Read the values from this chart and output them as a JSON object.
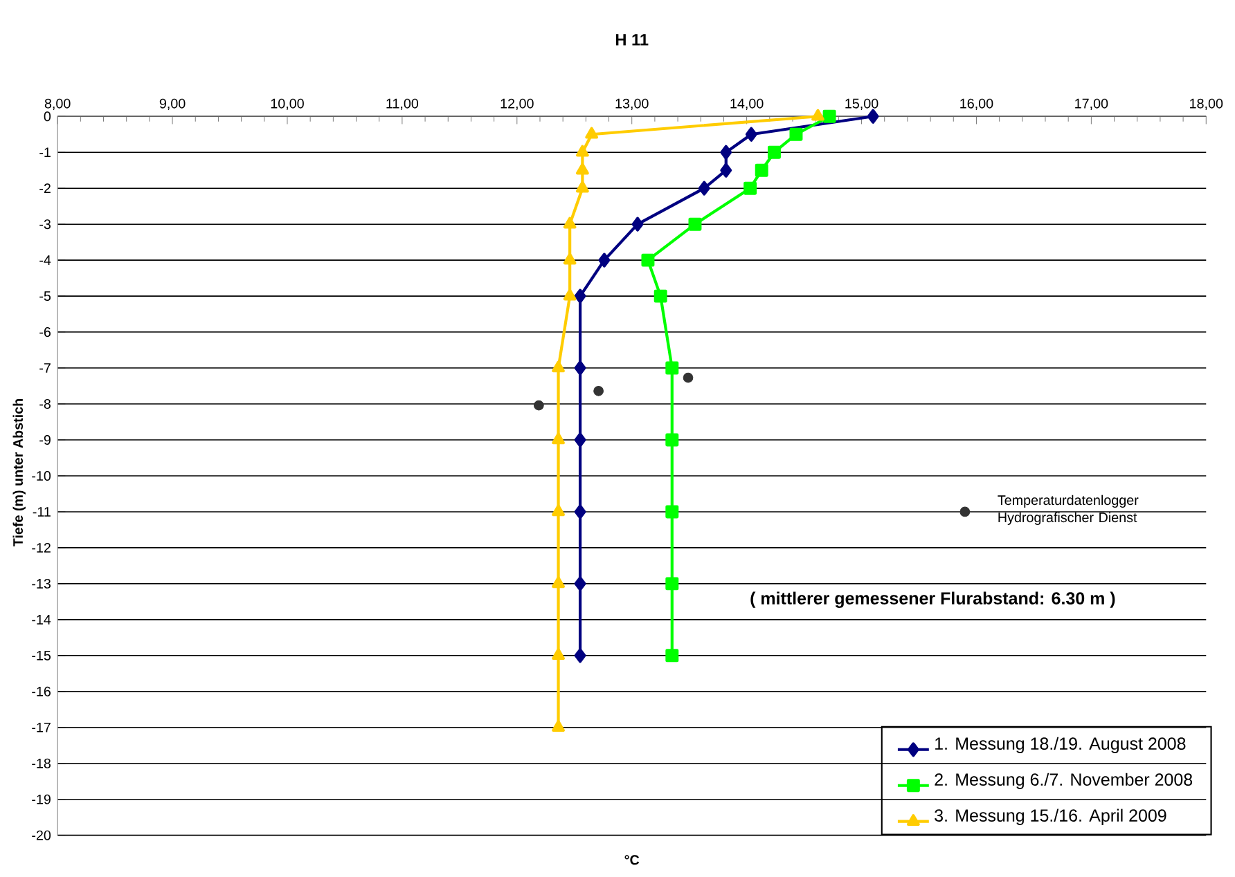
{
  "chart_data": {
    "type": "line",
    "title": "H 11",
    "xlabel": "°C",
    "ylabel": "Tiefe (m) unter Abstich",
    "xlim": [
      8,
      18
    ],
    "ylim": [
      -20,
      0
    ],
    "xticks": [
      {
        "value": 8,
        "label": "8,00"
      },
      {
        "value": 9,
        "label": "9,00"
      },
      {
        "value": 10,
        "label": "10,00"
      },
      {
        "value": 11,
        "label": "11,00"
      },
      {
        "value": 12,
        "label": "12,00"
      },
      {
        "value": 13,
        "label": "13,00"
      },
      {
        "value": 14,
        "label": "14,00"
      },
      {
        "value": 15,
        "label": "15,00"
      },
      {
        "value": 16,
        "label": "16,00"
      },
      {
        "value": 17,
        "label": "17,00"
      },
      {
        "value": 18,
        "label": "18,00"
      }
    ],
    "yticks": [
      0,
      -1,
      -2,
      -3,
      -4,
      -5,
      -6,
      -7,
      -8,
      -9,
      -10,
      -11,
      -12,
      -13,
      -14,
      -15,
      -16,
      -17,
      -18,
      -19,
      -20
    ],
    "grid": "y",
    "legend": "bottom right",
    "line_style": "solid",
    "annotations": [
      "( mittlerer gemessener Flurabstand:  6.30 m )"
    ],
    "series": [
      {
        "name": "1. Messung 18./19. August 2008",
        "color": "#000080",
        "marker": "diamond",
        "x": [
          15.1,
          14.04,
          13.82,
          13.82,
          13.63,
          13.05,
          12.76,
          12.55,
          12.55,
          12.55,
          12.55,
          12.55,
          12.55
        ],
        "values": [
          0,
          -0.5,
          -1,
          -1.5,
          -2,
          -3,
          -4,
          -5,
          -7,
          -9,
          -11,
          -13,
          -15
        ]
      },
      {
        "name": "2. Messung 6./7. November 2008",
        "color": "#00ff00",
        "marker": "square",
        "x": [
          14.72,
          14.43,
          14.24,
          14.13,
          14.03,
          13.55,
          13.14,
          13.25,
          13.35,
          13.35,
          13.35,
          13.35,
          13.35
        ],
        "values": [
          0,
          -0.5,
          -1,
          -1.5,
          -2,
          -3,
          -4,
          -5,
          -7,
          -9,
          -11,
          -13,
          -15
        ]
      },
      {
        "name": "3. Messung 15./16. April 2009",
        "color": "#ffcc00",
        "marker": "triangle",
        "x": [
          14.62,
          12.65,
          12.57,
          12.57,
          12.57,
          12.46,
          12.46,
          12.46,
          12.36,
          12.36,
          12.36,
          12.36,
          12.36,
          12.36
        ],
        "values": [
          0,
          -0.5,
          -1,
          -1.5,
          -2,
          -3,
          -4,
          -5,
          -7,
          -9,
          -11,
          -13,
          -15,
          -17
        ]
      },
      {
        "name": "Temperaturdatenlogger Hydrografischer Dienst",
        "type": "scatter",
        "color": "#333333",
        "marker": "circle",
        "x": [
          12.71,
          12.19,
          13.49
        ],
        "values": [
          -7.64,
          -8.04,
          -7.27
        ]
      }
    ]
  }
}
